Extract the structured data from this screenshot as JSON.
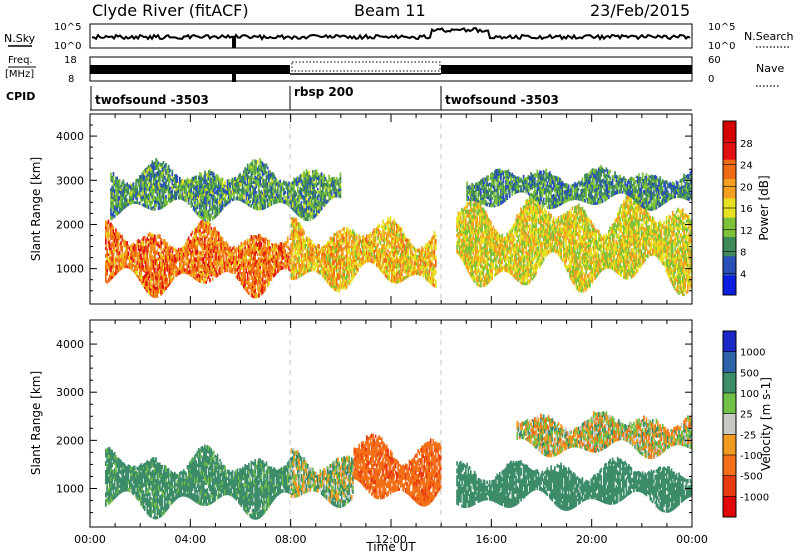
{
  "header": {
    "site": "Clyde River (fitACF)",
    "beam": "Beam 11",
    "date": "23/Feb/2015"
  },
  "top_panels": {
    "nsky_label": "N.Sky",
    "nsearch_label": "N.Search",
    "nsky_ticks": [
      "10^5",
      "10^0"
    ],
    "nsearch_ticks": [
      "10^5",
      "10^0"
    ],
    "freq_label": "Freq.",
    "freq_unit": "[MHz]",
    "freq_ticks": [
      "18",
      "8"
    ],
    "nave_label": "Nave",
    "nave_ticks": [
      "60",
      "0"
    ],
    "cpid_label": "CPID",
    "cpid_segments": [
      {
        "label": "twofsound -3503",
        "start_h": 0,
        "end_h": 8
      },
      {
        "label": "rbsp 200",
        "start_h": 8,
        "end_h": 14
      },
      {
        "label": "twofsound -3503",
        "start_h": 14,
        "end_h": 24
      }
    ]
  },
  "colors": {
    "power_scale": [
      "#0a1ee0",
      "#2a4fb8",
      "#3f8a5a",
      "#7dc23a",
      "#e6e020",
      "#f3a020",
      "#f06a14",
      "#e01010",
      "#d40000"
    ],
    "velocity_scale": [
      "#1a28c8",
      "#2e62a8",
      "#3c8c6a",
      "#72c048",
      "#c8c8c4",
      "#f09a20",
      "#f27018",
      "#e83a10",
      "#e00808"
    ]
  },
  "chart_data": [
    {
      "type": "heatmap",
      "panel": "power",
      "xlabel": "",
      "ylabel": "Slant Range [km]",
      "xlim": [
        0,
        24
      ],
      "ylim": [
        200,
        4500
      ],
      "y_ticks": [
        "4000",
        "3000",
        "2000",
        "1000"
      ],
      "colorbar_label": "Power [dB]",
      "colorbar_ticks": [
        "28",
        "24",
        "20",
        "16",
        "12",
        "8",
        "4"
      ],
      "bands": [
        {
          "t0": 0.6,
          "t1": 8.0,
          "r0": 500,
          "r1": 1900,
          "value": 22
        },
        {
          "t0": 8.0,
          "t1": 13.8,
          "r0": 600,
          "r1": 2000,
          "value": 18
        },
        {
          "t0": 14.6,
          "t1": 24.0,
          "r0": 600,
          "r1": 2500,
          "value": 16
        },
        {
          "t0": 0.8,
          "t1": 10.0,
          "r0": 2200,
          "r1": 3300,
          "value": 10
        },
        {
          "t0": 15.0,
          "t1": 24.0,
          "r0": 2400,
          "r1": 3200,
          "value": 9
        }
      ]
    },
    {
      "type": "heatmap",
      "panel": "velocity",
      "xlabel": "Time UT",
      "ylabel": "Slant Range [km]",
      "xlim": [
        0,
        24
      ],
      "ylim": [
        200,
        4500
      ],
      "x_ticks": [
        "00:00",
        "04:00",
        "08:00",
        "12:00",
        "16:00",
        "20:00",
        "00:00"
      ],
      "y_ticks": [
        "4000",
        "3000",
        "2000",
        "1000"
      ],
      "colorbar_label": "Velocity [m s-1]",
      "colorbar_ticks": [
        "1000",
        "500",
        "100",
        "25",
        "-25",
        "-100",
        "-500",
        "-1000"
      ],
      "bands": [
        {
          "t0": 0.6,
          "t1": 8.0,
          "r0": 500,
          "r1": 1700,
          "value": 200
        },
        {
          "t0": 8.0,
          "t1": 10.5,
          "r0": 700,
          "r1": 1700,
          "value": 50
        },
        {
          "t0": 10.5,
          "t1": 14.0,
          "r0": 700,
          "r1": 2000,
          "value": -400
        },
        {
          "t0": 14.6,
          "t1": 24.0,
          "r0": 600,
          "r1": 1500,
          "value": 300
        },
        {
          "t0": 17.0,
          "t1": 24.0,
          "r0": 1700,
          "r1": 2500,
          "value": 0
        }
      ]
    }
  ]
}
